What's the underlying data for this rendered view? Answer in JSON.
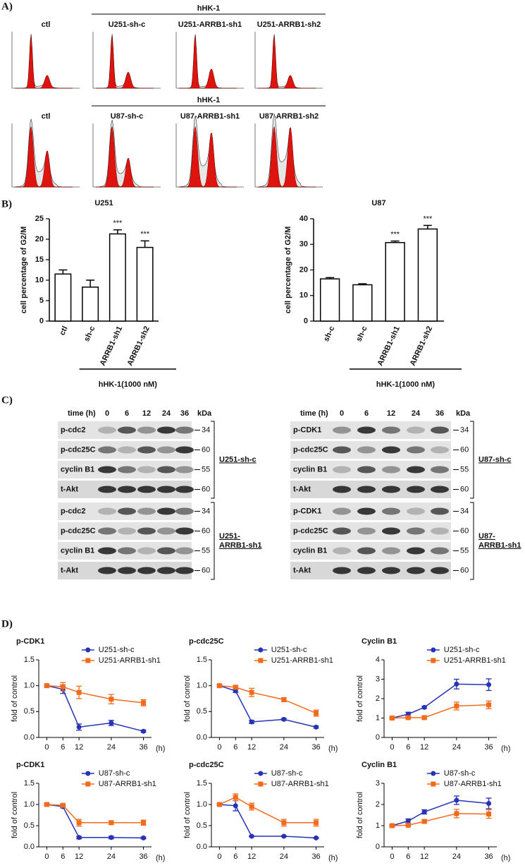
{
  "panel_labels": [
    "A)",
    "B)",
    "C)",
    "D)"
  ],
  "flow": [
    {
      "control": "ctl",
      "treatment": "hHK-1",
      "samples": [
        "U251-sh-c",
        "U251-ARRB1-sh1",
        "U251-ARRB1-sh2"
      ]
    },
    {
      "control": "ctl",
      "treatment": "hHK-1",
      "samples": [
        "U87-sh-c",
        "U87-ARRB1-sh1",
        "U87-ARRB1-sh2"
      ]
    }
  ],
  "chart_data": [
    {
      "type": "bar",
      "title": "U251",
      "ylabel": "cell percentage of G2/M",
      "categories": [
        "ctl",
        "sh-c",
        "ARRB1-sh1",
        "ARRB1-sh2"
      ],
      "values": [
        11.5,
        8.3,
        21.3,
        18
      ],
      "errors": [
        1,
        1.7,
        1,
        1.6
      ],
      "annotations": [
        null,
        null,
        "***",
        "***"
      ],
      "treatment": "hHK-1(1000 nM)",
      "color": "#ffffff",
      "edgecolor": "#000000",
      "ylim": [
        0,
        25
      ],
      "yticks": [
        0,
        5,
        10,
        15,
        20,
        25
      ]
    },
    {
      "type": "bar",
      "title": "U87",
      "ylabel": "cell percentage of G2/M",
      "categories": [
        "sh-c",
        "sh-c",
        "ARRB1-sh1",
        "ARRB1-sh2"
      ],
      "values": [
        16.5,
        14.2,
        30.7,
        36
      ],
      "errors": [
        0.5,
        0.4,
        0.6,
        1.4
      ],
      "annotations": [
        null,
        null,
        "***",
        "***"
      ],
      "treatment": "hHK-1(1000 nM)",
      "color": "#ffffff",
      "edgecolor": "#000000",
      "ylim": [
        0,
        40
      ],
      "yticks": [
        0,
        10,
        20,
        30,
        40
      ]
    },
    {
      "type": "line",
      "title": "p-CDK1",
      "ylabel": "fold of control",
      "xlabel": "(h)",
      "x": [
        0,
        6,
        12,
        24,
        36
      ],
      "xlim": [
        -3,
        39
      ],
      "xticks": [
        0,
        6,
        12,
        24,
        36
      ],
      "ylim": [
        0,
        1.5
      ],
      "yticks": [
        {
          "value": 0,
          "label": "0.0"
        },
        0.5,
        {
          "value": 1,
          "label": "1.0"
        },
        1.5
      ],
      "legend": "upper right",
      "series": [
        {
          "name": "U251-sh-c",
          "color": "#2633b5",
          "marker": "circle",
          "values": [
            1,
            0.93,
            0.2,
            0.28,
            0.12
          ],
          "errors": [
            0.02,
            0.08,
            0.06,
            0.05,
            0.02
          ]
        },
        {
          "name": "U251-ARRB1-sh1",
          "color": "#f26b1d",
          "marker": "square",
          "values": [
            1,
            0.98,
            0.87,
            0.74,
            0.67
          ],
          "errors": [
            0.02,
            0.08,
            0.12,
            0.09,
            0.06
          ]
        }
      ]
    },
    {
      "type": "line",
      "title": "p-cdc25C",
      "ylabel": "fold of control",
      "xlabel": "(h)",
      "x": [
        0,
        6,
        12,
        24,
        36
      ],
      "xlim": [
        -3,
        39
      ],
      "xticks": [
        0,
        6,
        12,
        24,
        36
      ],
      "ylim": [
        0,
        1.5
      ],
      "yticks": [
        {
          "value": 0,
          "label": "0.0"
        },
        0.5,
        {
          "value": 1,
          "label": "1.0"
        },
        1.5
      ],
      "legend": "upper right",
      "series": [
        {
          "name": "U251-sh-c",
          "color": "#2633b5",
          "marker": "circle",
          "values": [
            1,
            0.9,
            0.3,
            0.35,
            0.2
          ],
          "errors": [
            0.02,
            0.03,
            0.03,
            0.02,
            0.02
          ]
        },
        {
          "name": "U251-ARRB1-sh1",
          "color": "#f26b1d",
          "marker": "square",
          "values": [
            1,
            0.97,
            0.87,
            0.73,
            0.47
          ],
          "errors": [
            0.02,
            0.03,
            0.08,
            0.04,
            0.06
          ]
        }
      ]
    },
    {
      "type": "line",
      "title": "Cyclin B1",
      "ylabel": "fold of control",
      "xlabel": "(h)",
      "x": [
        0,
        6,
        12,
        24,
        36
      ],
      "xlim": [
        -3,
        39
      ],
      "xticks": [
        0,
        6,
        12,
        24,
        36
      ],
      "ylim": [
        0,
        4
      ],
      "yticks": [
        0,
        1,
        2,
        3,
        4
      ],
      "legend": "upper right",
      "series": [
        {
          "name": "U251-sh-c",
          "color": "#2633b5",
          "marker": "circle",
          "values": [
            1,
            1.2,
            1.55,
            2.75,
            2.72
          ],
          "errors": [
            0.05,
            0.1,
            0.05,
            0.25,
            0.3
          ]
        },
        {
          "name": "U251-ARRB1-sh1",
          "color": "#f26b1d",
          "marker": "square",
          "values": [
            1,
            1.02,
            1.02,
            1.62,
            1.68
          ],
          "errors": [
            0.05,
            0.05,
            0.08,
            0.2,
            0.2
          ]
        }
      ]
    },
    {
      "type": "line",
      "title": "p-CDK1",
      "ylabel": "fold of control",
      "xlabel": "(h)",
      "x": [
        0,
        6,
        12,
        24,
        36
      ],
      "xlim": [
        -3,
        39
      ],
      "xticks": [
        0,
        6,
        12,
        24,
        36
      ],
      "ylim": [
        0,
        1.5
      ],
      "yticks": [
        {
          "value": 0,
          "label": "0.0"
        },
        0.5,
        {
          "value": 1,
          "label": "1.0"
        },
        1.5
      ],
      "legend": "upper right",
      "series": [
        {
          "name": "U87-sh-c",
          "color": "#2633b5",
          "marker": "circle",
          "values": [
            1,
            0.95,
            0.22,
            0.22,
            0.21
          ],
          "errors": [
            0.02,
            0.03,
            0.03,
            0.03,
            0.02
          ]
        },
        {
          "name": "U87-ARRB1-sh1",
          "color": "#f26b1d",
          "marker": "square",
          "values": [
            1,
            0.98,
            0.57,
            0.57,
            0.57
          ],
          "errors": [
            0.02,
            0.03,
            0.08,
            0.04,
            0.06
          ]
        }
      ]
    },
    {
      "type": "line",
      "title": "p-cdc25C",
      "ylabel": "fold of control",
      "xlabel": "(h)",
      "x": [
        0,
        6,
        12,
        24,
        36
      ],
      "xlim": [
        -3,
        39
      ],
      "xticks": [
        0,
        6,
        12,
        24,
        36
      ],
      "ylim": [
        0,
        1.5
      ],
      "yticks": [
        {
          "value": 0,
          "label": "0.0"
        },
        0.5,
        {
          "value": 1,
          "label": "1.0"
        },
        1.5
      ],
      "legend": "upper right",
      "series": [
        {
          "name": "U87-sh-c",
          "color": "#2633b5",
          "marker": "circle",
          "values": [
            1,
            0.97,
            0.25,
            0.25,
            0.21
          ],
          "errors": [
            0.02,
            0.12,
            0.01,
            0.01,
            0.01
          ]
        },
        {
          "name": "U87-ARRB1-sh1",
          "color": "#f26b1d",
          "marker": "square",
          "values": [
            1,
            1.17,
            0.95,
            0.57,
            0.57
          ],
          "errors": [
            0.02,
            0.08,
            0.08,
            0.08,
            0.08
          ]
        }
      ]
    },
    {
      "type": "line",
      "title": "Cyclin B1",
      "ylabel": "fold of control",
      "xlabel": "(h)",
      "x": [
        0,
        6,
        12,
        24,
        36
      ],
      "xlim": [
        -3,
        39
      ],
      "xticks": [
        0,
        6,
        12,
        24,
        36
      ],
      "ylim": [
        0,
        3
      ],
      "yticks": [
        0,
        1,
        2,
        3
      ],
      "legend": "upper right",
      "series": [
        {
          "name": "U87-sh-c",
          "color": "#2633b5",
          "marker": "circle",
          "values": [
            1,
            1.22,
            1.65,
            2.2,
            2.05
          ],
          "errors": [
            0.05,
            0.1,
            0.1,
            0.2,
            0.25
          ]
        },
        {
          "name": "U87-ARRB1-sh1",
          "color": "#f26b1d",
          "marker": "square",
          "values": [
            1,
            1.02,
            1.2,
            1.57,
            1.55
          ],
          "errors": [
            0.03,
            0.03,
            0.08,
            0.2,
            0.2
          ]
        }
      ]
    }
  ],
  "blots": [
    {
      "time_label": "time (h)",
      "times": [
        0,
        6,
        12,
        24,
        36
      ],
      "unit": "kDa",
      "groups": [
        {
          "name": [
            "U251-sh-c"
          ],
          "rows": [
            {
              "protein": "p-cdc2",
              "kda": 34
            },
            {
              "protein": "p-cdc25C",
              "kda": 60
            },
            {
              "protein": "cyclin B1",
              "kda": 55
            },
            {
              "protein": "t-Akt",
              "kda": 60
            }
          ]
        },
        {
          "name": [
            "U251-",
            "ARRB1-sh1"
          ],
          "rows": [
            {
              "protein": "p-cdc2",
              "kda": 34
            },
            {
              "protein": "p-cdc25C",
              "kda": 60
            },
            {
              "protein": "cyclin B1",
              "kda": 55
            },
            {
              "protein": "t-Akt",
              "kda": 60
            }
          ]
        }
      ]
    },
    {
      "time_label": "time (h)",
      "times": [
        0,
        6,
        12,
        24,
        36
      ],
      "unit": "kDa",
      "groups": [
        {
          "name": [
            "U87-sh-c"
          ],
          "rows": [
            {
              "protein": "p-CDK1",
              "kda": 34
            },
            {
              "protein": "p-cdc25C",
              "kda": 60
            },
            {
              "protein": "cyclin B1",
              "kda": 55
            },
            {
              "protein": "t-Akt",
              "kda": 60
            }
          ]
        },
        {
          "name": [
            "U87-",
            "ARRB1-sh1"
          ],
          "rows": [
            {
              "protein": "p-CDK1",
              "kda": 34
            },
            {
              "protein": "p-cdc25C",
              "kda": 60
            },
            {
              "protein": "cyclin B1",
              "kda": 55
            },
            {
              "protein": "t-Akt",
              "kda": 60
            }
          ]
        }
      ]
    }
  ]
}
